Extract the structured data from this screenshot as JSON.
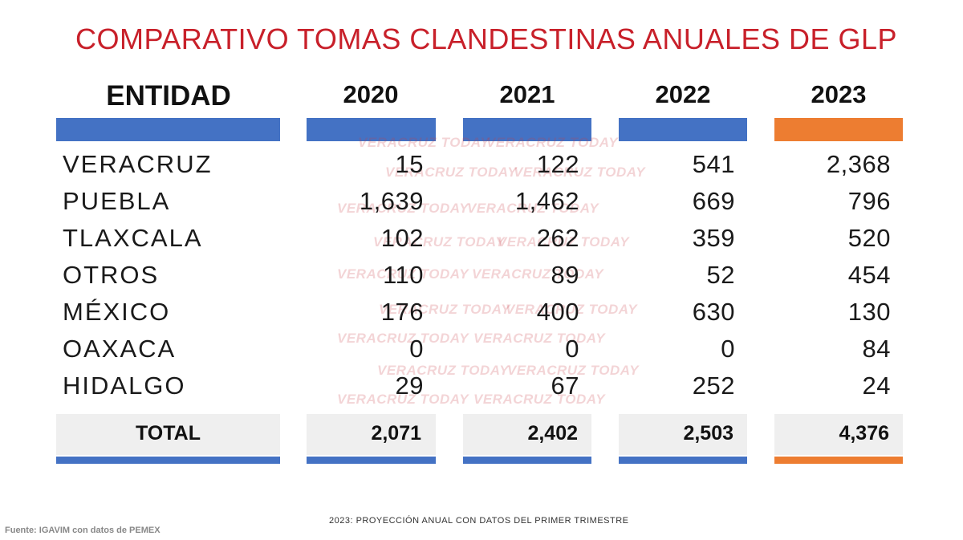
{
  "chart_data": {
    "type": "table",
    "title": "COMPARATIVO TOMAS CLANDESTINAS ANUALES DE GLP",
    "columns": [
      "ENTIDAD",
      "2020",
      "2021",
      "2022",
      "2023"
    ],
    "rows": [
      {
        "entidad": "VERACRUZ",
        "values": [
          "15",
          "122",
          "541",
          "2,368"
        ]
      },
      {
        "entidad": "PUEBLA",
        "values": [
          "1,639",
          "1,462",
          "669",
          "796"
        ]
      },
      {
        "entidad": "TLAXCALA",
        "values": [
          "102",
          "262",
          "359",
          "520"
        ]
      },
      {
        "entidad": "OTROS",
        "values": [
          "110",
          "89",
          "52",
          "454"
        ]
      },
      {
        "entidad": "MÉXICO",
        "values": [
          "176",
          "400",
          "630",
          "130"
        ]
      },
      {
        "entidad": "OAXACA",
        "values": [
          "0",
          "0",
          "0",
          "84"
        ]
      },
      {
        "entidad": "HIDALGO",
        "values": [
          "29",
          "67",
          "252",
          "24"
        ]
      }
    ],
    "total": {
      "label": "TOTAL",
      "values": [
        "2,071",
        "2,402",
        "2,503",
        "4,376"
      ]
    },
    "note": "2023: PROYECCIÓN ANUAL CON DATOS DEL PRIMER TRIMESTRE",
    "source": "Fuente: IGAVIM con datos de PEMEX",
    "watermark": "VERACRUZ TODAY",
    "colors": {
      "title": "#c8202a",
      "blue": "#4472c4",
      "orange": "#ed7d31",
      "total_bg": "#efefef"
    }
  }
}
